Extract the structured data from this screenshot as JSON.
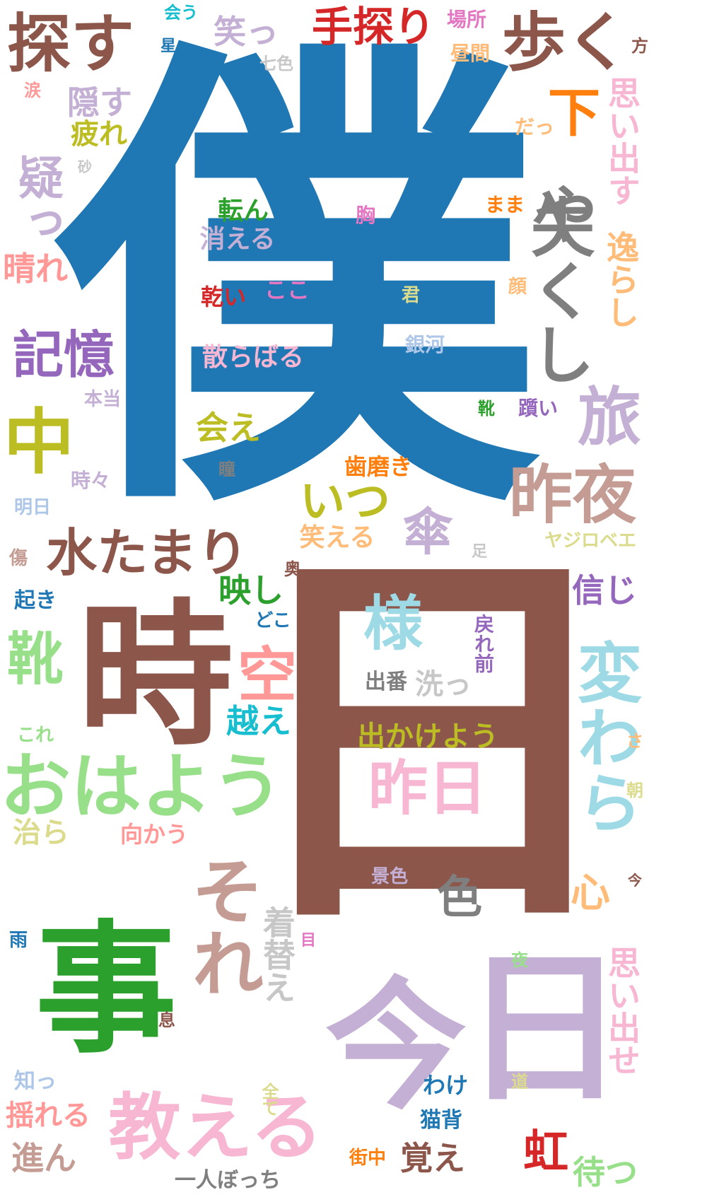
{
  "words": [
    {
      "text": "僕",
      "color": "#1f77b4"
    },
    {
      "text": "日",
      "color": "#8c564b"
    },
    {
      "text": "時",
      "color": "#8c564b"
    },
    {
      "text": "事",
      "color": "#2ca02c"
    },
    {
      "text": "今",
      "color": "#c5b0d5"
    },
    {
      "text": "日",
      "color": "#c5b0d5"
    },
    {
      "text": "探す",
      "color": "#8c564b"
    },
    {
      "text": "歩く",
      "color": "#8c564b"
    },
    {
      "text": "手探り",
      "color": "#d62728"
    },
    {
      "text": "失くし",
      "color": "#7f7f7f"
    },
    {
      "text": "や",
      "color": "#7f7f7f"
    },
    {
      "text": "旅",
      "color": "#c5b0d5"
    },
    {
      "text": "昨夜",
      "color": "#c49c94"
    },
    {
      "text": "傘",
      "color": "#c5b0d5"
    },
    {
      "text": "水たまり",
      "color": "#8c564b"
    },
    {
      "text": "記憶",
      "color": "#9467bd"
    },
    {
      "text": "中",
      "color": "#bcbd22"
    },
    {
      "text": "疑っ",
      "color": "#c5b0d5"
    },
    {
      "text": "おはよう",
      "color": "#98df8a"
    },
    {
      "text": "教える",
      "color": "#f7b6d2"
    },
    {
      "text": "それ",
      "color": "#c49c94"
    },
    {
      "text": "変わら",
      "color": "#9edae5"
    },
    {
      "text": "様",
      "color": "#9edae5"
    },
    {
      "text": "昨日",
      "color": "#f7b6d2"
    },
    {
      "text": "空",
      "color": "#ff9896"
    },
    {
      "text": "靴",
      "color": "#98df8a"
    },
    {
      "text": "下",
      "color": "#ff7f0e"
    },
    {
      "text": "いつ",
      "color": "#bcbd22"
    },
    {
      "text": "逸らし",
      "color": "#ffbb78"
    },
    {
      "text": "思い出す",
      "color": "#f7b6d2"
    },
    {
      "text": "笑っ",
      "color": "#c5b0d5"
    },
    {
      "text": "隠す",
      "color": "#c5b0d5"
    },
    {
      "text": "疲れ",
      "color": "#bcbd22"
    },
    {
      "text": "晴れ",
      "color": "#ff9896"
    },
    {
      "text": "会え",
      "color": "#bcbd22"
    },
    {
      "text": "映し",
      "color": "#2ca02c"
    },
    {
      "text": "越え",
      "color": "#17becf"
    },
    {
      "text": "虹",
      "color": "#d62728"
    },
    {
      "text": "待つ",
      "color": "#98df8a"
    },
    {
      "text": "色",
      "color": "#7f7f7f"
    },
    {
      "text": "着替え",
      "color": "#c7c7c7"
    },
    {
      "text": "心",
      "color": "#ffbb78"
    },
    {
      "text": "思い出せ",
      "color": "#f7b6d2"
    },
    {
      "text": "覚え",
      "color": "#8c564b"
    },
    {
      "text": "出かけよう",
      "color": "#bcbd22"
    },
    {
      "text": "信じ",
      "color": "#9467bd"
    },
    {
      "text": "洗っ",
      "color": "#c7c7c7"
    },
    {
      "text": "戻れ前",
      "color": "#9467bd"
    },
    {
      "text": "出番",
      "color": "#7f7f7f"
    },
    {
      "text": "揺れる",
      "color": "#ff9896"
    },
    {
      "text": "進ん",
      "color": "#c49c94"
    },
    {
      "text": "治ら",
      "color": "#dbdb8d"
    },
    {
      "text": "向かう",
      "color": "#ff9896"
    },
    {
      "text": "散らばる",
      "color": "#f7b6d2"
    },
    {
      "text": "消える",
      "color": "#c5b0d5"
    },
    {
      "text": "転ん",
      "color": "#2ca02c"
    },
    {
      "text": "乾い",
      "color": "#d62728"
    },
    {
      "text": "ここ",
      "color": "#e377c2"
    },
    {
      "text": "笑える",
      "color": "#ffbb78"
    },
    {
      "text": "歯磨き",
      "color": "#ff7f0e"
    },
    {
      "text": "一人ぼっち",
      "color": "#7f7f7f"
    },
    {
      "text": "街中",
      "color": "#ff7f0e"
    },
    {
      "text": "猫背",
      "color": "#1f77b4"
    },
    {
      "text": "わけ",
      "color": "#1f77b4"
    },
    {
      "text": "景色",
      "color": "#c5b0d5"
    },
    {
      "text": "ヤジロベエ",
      "color": "#dbdb8d"
    },
    {
      "text": "本当",
      "color": "#c5b0d5"
    },
    {
      "text": "時々",
      "color": "#c5b0d5"
    },
    {
      "text": "明日",
      "color": "#aec7e8"
    },
    {
      "text": "傷",
      "color": "#c49c94"
    },
    {
      "text": "起き",
      "color": "#1f77b4"
    },
    {
      "text": "これ",
      "color": "#98df8a"
    },
    {
      "text": "雨",
      "color": "#1f77b4"
    },
    {
      "text": "知っ",
      "color": "#aec7e8"
    },
    {
      "text": "全て",
      "color": "#dbdb8d"
    },
    {
      "text": "目",
      "color": "#e377c2"
    },
    {
      "text": "息",
      "color": "#8c564b"
    },
    {
      "text": "瞳",
      "color": "#7f7f7f"
    },
    {
      "text": "君",
      "color": "#dbdb8d"
    },
    {
      "text": "銀河",
      "color": "#aec7e8"
    },
    {
      "text": "靴",
      "color": "#2ca02c"
    },
    {
      "text": "躓い",
      "color": "#9467bd"
    },
    {
      "text": "顔",
      "color": "#ffbb78"
    },
    {
      "text": "まま",
      "color": "#ff7f0e"
    },
    {
      "text": "胸",
      "color": "#e377c2"
    },
    {
      "text": "だっ",
      "color": "#ffbb78"
    },
    {
      "text": "場所",
      "color": "#e377c2"
    },
    {
      "text": "昼間",
      "color": "#ffbb78"
    },
    {
      "text": "方",
      "color": "#8c564b"
    },
    {
      "text": "会う",
      "color": "#17becf"
    },
    {
      "text": "星",
      "color": "#1f77b4"
    },
    {
      "text": "七色",
      "color": "#c7c7c7"
    },
    {
      "text": "涙",
      "color": "#ff9896"
    },
    {
      "text": "砂",
      "color": "#c7c7c7"
    },
    {
      "text": "足",
      "color": "#c7c7c7"
    },
    {
      "text": "奥",
      "color": "#8c564b"
    },
    {
      "text": "どこ",
      "color": "#1f77b4"
    },
    {
      "text": "さ",
      "color": "#ffbb78"
    },
    {
      "text": "朝",
      "color": "#dbdb8d"
    },
    {
      "text": "今",
      "color": "#8c564b"
    },
    {
      "text": "夜",
      "color": "#98df8a"
    },
    {
      "text": "道",
      "color": "#dbdb8d"
    }
  ]
}
